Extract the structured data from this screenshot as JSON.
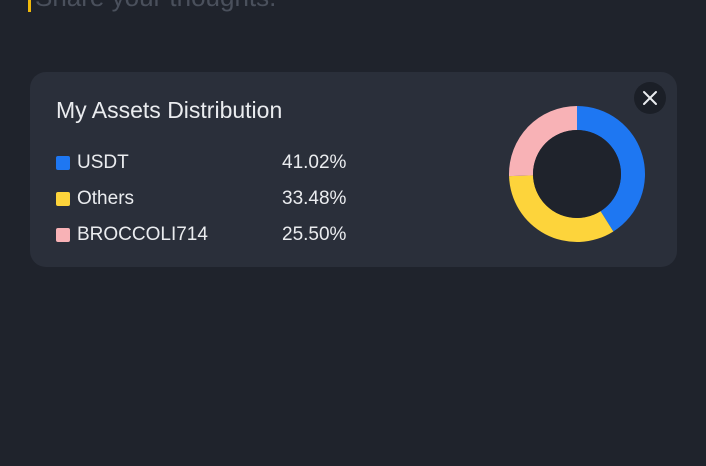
{
  "composer": {
    "placeholder": "Share your thoughts."
  },
  "card": {
    "title": "My Assets Distribution",
    "close_icon": "close-icon"
  },
  "chart_data": {
    "type": "pie",
    "variant": "donut",
    "title": "My Assets Distribution",
    "categories": [
      "USDT",
      "Others",
      "BROCCOLI714"
    ],
    "values": [
      41.02,
      33.48,
      25.5
    ],
    "labels": [
      "41.02%",
      "33.48%",
      "25.50%"
    ],
    "colors": [
      "#1e77f2",
      "#fdd43b",
      "#f8b2b6"
    ],
    "legend": "left"
  },
  "colors": {
    "background": "#1f232c",
    "card": "#2a2f3a",
    "accent_caret": "#f0b90b"
  }
}
